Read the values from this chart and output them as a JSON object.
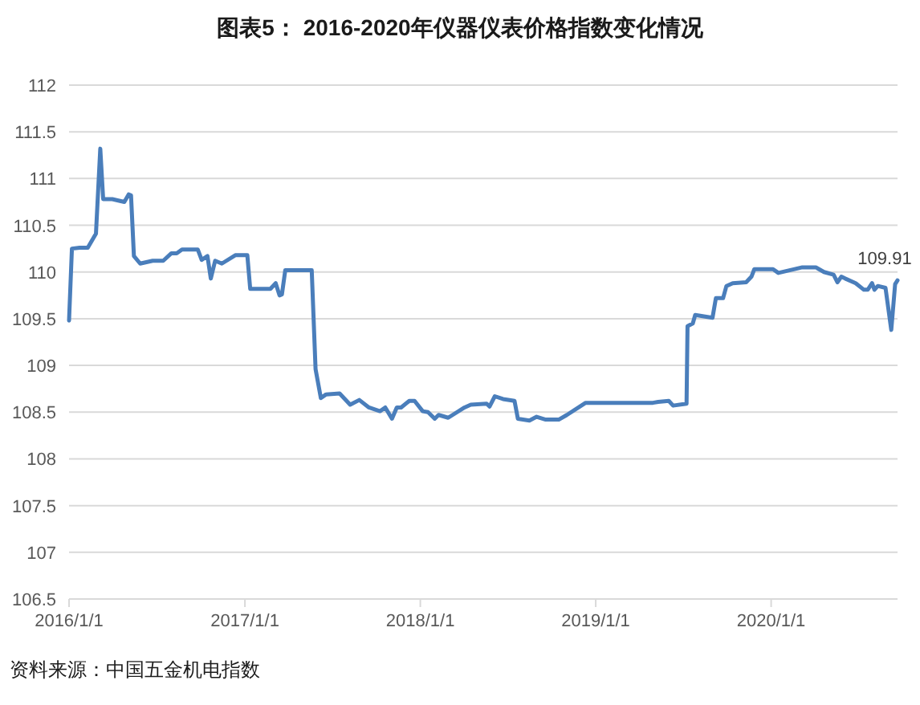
{
  "chart_data": {
    "type": "line",
    "title": "图表5： 2016-2020年仪器仪表价格指数变化情况",
    "annotations": [
      "资料来源：中国五金机电指数"
    ],
    "xlim": [
      "2016-01-01",
      "2020-09-20"
    ],
    "xticks": [
      {
        "value": "2016-01-01",
        "label": "2016/1/1"
      },
      {
        "value": "2017-01-01",
        "label": "2017/1/1"
      },
      {
        "value": "2018-01-01",
        "label": "2018/1/1"
      },
      {
        "value": "2019-01-01",
        "label": "2019/1/1"
      },
      {
        "value": "2020-01-01",
        "label": "2020/1/1"
      }
    ],
    "ylim": [
      106.5,
      112
    ],
    "yticks": [
      106.5,
      107,
      107.5,
      108,
      108.5,
      109,
      109.5,
      110,
      110.5,
      111,
      111.5,
      112
    ],
    "grid": "y",
    "series": [
      {
        "color": "#4a7ebb",
        "x": [
          "2016-01-01",
          "2016-01-07",
          "2016-01-23",
          "2016-02-09",
          "2016-02-26",
          "2016-03-06",
          "2016-03-12",
          "2016-03-31",
          "2016-04-25",
          "2016-05-04",
          "2016-05-09",
          "2016-05-15",
          "2016-05-28",
          "2016-06-23",
          "2016-07-15",
          "2016-08-01",
          "2016-08-12",
          "2016-08-23",
          "2016-09-25",
          "2016-10-03",
          "2016-10-15",
          "2016-10-22",
          "2016-10-31",
          "2016-11-14",
          "2016-12-12",
          "2017-01-06",
          "2017-01-12",
          "2017-02-23",
          "2017-03-06",
          "2017-03-14",
          "2017-03-19",
          "2017-03-26",
          "2017-05-20",
          "2017-05-28",
          "2017-06-08",
          "2017-06-19",
          "2017-07-17",
          "2017-08-08",
          "2017-08-27",
          "2017-09-16",
          "2017-10-09",
          "2017-10-20",
          "2017-11-03",
          "2017-11-13",
          "2017-11-22",
          "2017-12-09",
          "2017-12-20",
          "2018-01-06",
          "2018-01-17",
          "2018-01-31",
          "2018-02-08",
          "2018-02-28",
          "2018-04-03",
          "2018-04-16",
          "2018-05-19",
          "2018-05-25",
          "2018-06-05",
          "2018-06-22",
          "2018-07-16",
          "2018-07-23",
          "2018-08-16",
          "2018-08-31",
          "2018-09-19",
          "2018-10-16",
          "2018-11-02",
          "2018-12-11",
          "2019-04-30",
          "2019-05-11",
          "2019-06-02",
          "2019-06-11",
          "2019-07-09",
          "2019-07-11",
          "2019-07-22",
          "2019-07-27",
          "2019-09-01",
          "2019-09-08",
          "2019-09-23",
          "2019-09-30",
          "2019-10-13",
          "2019-11-10",
          "2019-11-21",
          "2019-11-27",
          "2020-01-05",
          "2020-01-16",
          "2020-03-06",
          "2020-04-03",
          "2020-04-20",
          "2020-05-10",
          "2020-05-18",
          "2020-05-26",
          "2020-06-03",
          "2020-06-25",
          "2020-07-12",
          "2020-07-20",
          "2020-07-29",
          "2020-08-03",
          "2020-08-10",
          "2020-08-26",
          "2020-09-07",
          "2020-09-15",
          "2020-09-20"
        ],
        "values": [
          109.48,
          110.25,
          110.26,
          110.26,
          110.41,
          111.32,
          110.78,
          110.78,
          110.75,
          110.83,
          110.82,
          110.17,
          110.09,
          110.12,
          110.12,
          110.2,
          110.2,
          110.24,
          110.24,
          110.13,
          110.17,
          109.93,
          110.12,
          110.09,
          110.18,
          110.18,
          109.82,
          109.82,
          109.88,
          109.75,
          109.76,
          110.02,
          110.02,
          108.96,
          108.65,
          108.69,
          108.7,
          108.58,
          108.63,
          108.55,
          108.51,
          108.55,
          108.43,
          108.55,
          108.55,
          108.62,
          108.62,
          108.51,
          108.5,
          108.43,
          108.47,
          108.44,
          108.55,
          108.58,
          108.59,
          108.56,
          108.67,
          108.64,
          108.62,
          108.43,
          108.41,
          108.45,
          108.42,
          108.42,
          108.47,
          108.6,
          108.6,
          108.61,
          108.62,
          108.57,
          108.59,
          109.42,
          109.45,
          109.54,
          109.51,
          109.72,
          109.72,
          109.85,
          109.88,
          109.89,
          109.95,
          110.03,
          110.03,
          109.99,
          110.05,
          110.05,
          110,
          109.97,
          109.89,
          109.95,
          109.93,
          109.88,
          109.81,
          109.81,
          109.88,
          109.81,
          109.85,
          109.83,
          109.38,
          109.87,
          109.91
        ],
        "value_labels": [
          null,
          null,
          null,
          null,
          null,
          null,
          null,
          null,
          null,
          null,
          null,
          null,
          null,
          null,
          null,
          null,
          null,
          null,
          null,
          null,
          null,
          null,
          null,
          null,
          null,
          null,
          null,
          null,
          null,
          null,
          null,
          null,
          null,
          null,
          null,
          null,
          null,
          null,
          null,
          null,
          null,
          null,
          null,
          null,
          null,
          null,
          null,
          null,
          null,
          null,
          null,
          null,
          null,
          null,
          null,
          null,
          null,
          null,
          null,
          null,
          null,
          null,
          null,
          null,
          null,
          null,
          null,
          null,
          null,
          null,
          null,
          null,
          null,
          null,
          null,
          null,
          null,
          null,
          null,
          null,
          null,
          null,
          null,
          null,
          null,
          null,
          null,
          null,
          null,
          null,
          null,
          null,
          null,
          null,
          null,
          null,
          null,
          null,
          null,
          null,
          "109.91"
        ]
      }
    ]
  }
}
